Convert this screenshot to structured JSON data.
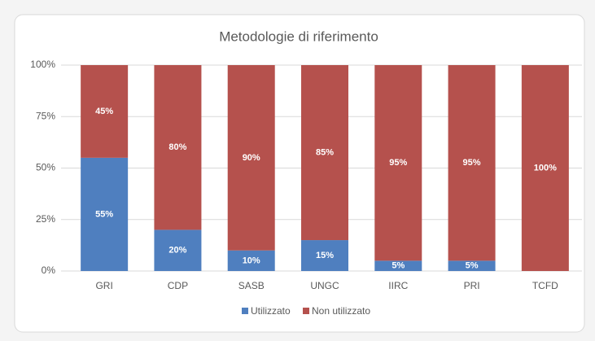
{
  "chart_data": {
    "type": "stacked_bar",
    "title": "Metodologie di riferimento",
    "categories": [
      "GRI",
      "CDP",
      "SASB",
      "UNGC",
      "IIRC",
      "PRI",
      "TCFD"
    ],
    "series": [
      {
        "name": "Utilizzato",
        "color": "#4f7fbf",
        "values": [
          55,
          20,
          10,
          15,
          5,
          5,
          0
        ],
        "value_labels": [
          "55%",
          "20%",
          "10%",
          "15%",
          "5%",
          "5%",
          null
        ]
      },
      {
        "name": "Non utilizzato",
        "color": "#b5514d",
        "values": [
          45,
          80,
          90,
          85,
          95,
          95,
          100
        ],
        "value_labels": [
          "45%",
          "80%",
          "90%",
          "85%",
          "95%",
          "95%",
          "100%"
        ]
      }
    ],
    "ylim": [
      0,
      100
    ],
    "yticks": [
      {
        "value": 0,
        "label": "0%"
      },
      {
        "value": 25,
        "label": "25%"
      },
      {
        "value": 50,
        "label": "50%"
      },
      {
        "value": 75,
        "label": "75%"
      },
      {
        "value": 100,
        "label": "100%"
      }
    ],
    "grid": true,
    "legend": "bottom"
  }
}
